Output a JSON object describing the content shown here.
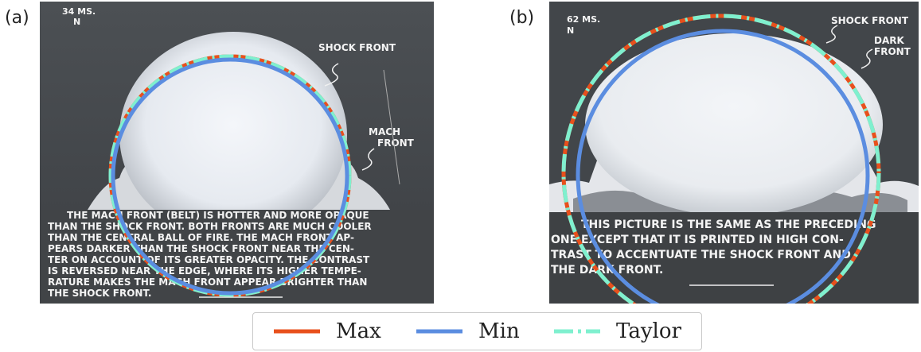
{
  "panels": [
    {
      "label": "(a)",
      "time": "34 MS.",
      "north": "N",
      "annotations": [
        "SHOCK FRONT",
        "MACH",
        "FRONT"
      ],
      "caption": [
        "THE MACH FRONT (BELT) IS HOTTER AND MORE OPAQUE",
        "THAN THE SHOCK FRONT. BOTH FRONTS ARE MUCH COOLER",
        "THAN THE CENTRAL BALL OF FIRE. THE MACH FRONT AP-",
        "PEARS DARKER THAN THE SHOCK FRONT NEAR THE CEN-",
        "TER ON ACCOUNT OF ITS GREATER OPACITY. THE CONTRAST",
        "IS REVERSED NEAR THE EDGE, WHERE ITS HIGHER TEMPE-",
        "RATURE MAKES THE MACH FRONT APPEAR BRIGHTER THAN",
        "THE SHOCK FRONT."
      ]
    },
    {
      "label": "(b)",
      "time": "62 MS.",
      "north": "N",
      "annotations": [
        "SHOCK FRONT",
        "DARK",
        "FRONT"
      ],
      "caption": [
        "THIS PICTURE IS THE SAME AS THE PRECEDING",
        "ONE EXCEPT THAT IT IS PRINTED IN HIGH CON-",
        "TRAST TO ACCENTUATE THE SHOCK FRONT AND",
        "THE DARK FRONT."
      ]
    }
  ],
  "legend": [
    {
      "name": "Max",
      "color": "#e8501c",
      "style": "solid"
    },
    {
      "name": "Min",
      "color": "#5b8de0",
      "style": "solid"
    },
    {
      "name": "Taylor",
      "color": "#7ff0cf",
      "style": "dashdot"
    }
  ]
}
